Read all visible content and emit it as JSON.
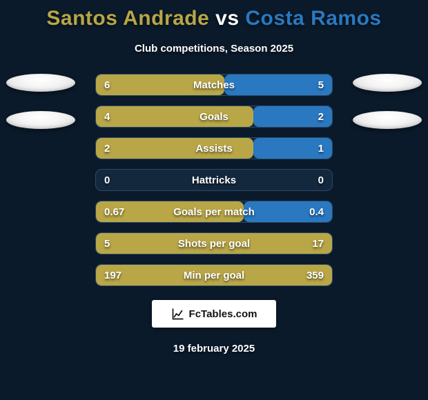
{
  "title_player_a": "Santos Andrade",
  "title_vs": "vs",
  "title_player_b": "Costa Ramos",
  "title_color_a": "#b8a647",
  "title_color_vs": "#ffffff",
  "title_color_b": "#2a78c0",
  "subtitle": "Club competitions, Season 2025",
  "date": "19 february 2025",
  "logo_text": "FcTables.com",
  "background_color": "#0a1a2a",
  "bar_bg_color": "#13283d",
  "bar_border_color": "#2a4a68",
  "fill_color_a": "#b8a647",
  "fill_color_b": "#2a78c0",
  "text_color": "#ffffff",
  "title_fontsize": 30,
  "subtitle_fontsize": 15,
  "stats": [
    {
      "label": "Matches",
      "value_a": "6",
      "value_b": "5",
      "pct_a": 54.5,
      "pct_b": 45.5
    },
    {
      "label": "Goals",
      "value_a": "4",
      "value_b": "2",
      "pct_a": 66.7,
      "pct_b": 33.3
    },
    {
      "label": "Assists",
      "value_a": "2",
      "value_b": "1",
      "pct_a": 66.7,
      "pct_b": 33.3
    },
    {
      "label": "Hattricks",
      "value_a": "0",
      "value_b": "0",
      "pct_a": 0,
      "pct_b": 0
    },
    {
      "label": "Goals per match",
      "value_a": "0.67",
      "value_b": "0.4",
      "pct_a": 62.6,
      "pct_b": 37.4
    },
    {
      "label": "Shots per goal",
      "value_a": "5",
      "value_b": "17",
      "pct_a": 100,
      "pct_b": 0
    },
    {
      "label": "Min per goal",
      "value_a": "197",
      "value_b": "359",
      "pct_a": 100,
      "pct_b": 0
    }
  ]
}
